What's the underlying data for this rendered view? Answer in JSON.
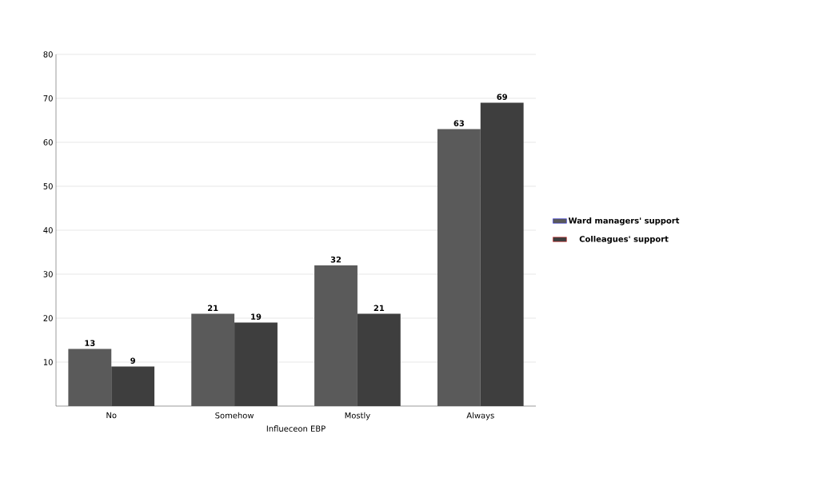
{
  "chart_data": {
    "type": "bar",
    "xlabel": "Influeceon EBP",
    "categories": [
      "No",
      "Somehow",
      "Mostly",
      "Always"
    ],
    "series": [
      {
        "name": "Ward managers' support",
        "color": "#5a5a5a",
        "values": [
          13,
          21,
          32,
          63
        ]
      },
      {
        "name": "Colleagues' support",
        "color": "#3e3e3e",
        "values": [
          9,
          19,
          21,
          69
        ]
      }
    ],
    "ylim": [
      0,
      80
    ],
    "yticks": [
      10,
      20,
      30,
      40,
      50,
      60,
      70,
      80
    ],
    "grid": "y",
    "legend": "right",
    "data_labels": true
  }
}
